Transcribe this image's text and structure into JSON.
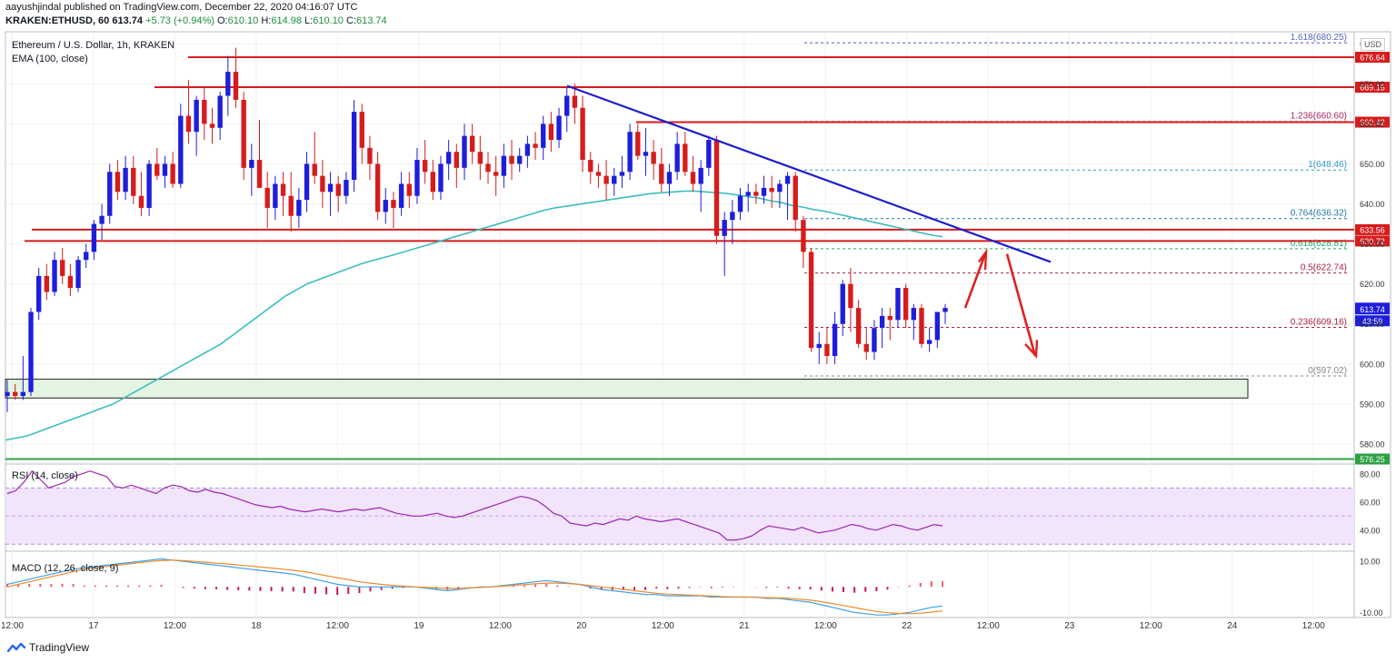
{
  "header": {
    "publisher": "aayushjindal",
    "published_text": " published on TradingView.com, December 22, 2020 04:16:07 UTC",
    "symbol": "KRAKEN:ETHUSD, 60",
    "last": "613.74",
    "change": "+5.73 (+0.94%)",
    "ohlc": [
      {
        "label": "O:",
        "value": "610.10"
      },
      {
        "label": "H:",
        "value": "614.98"
      },
      {
        "label": "L:",
        "value": "610.10"
      },
      {
        "label": "C:",
        "value": "613.74"
      }
    ]
  },
  "main_pane": {
    "title": "Ethereum / U.S. Dollar, 1h, KRAKEN",
    "indicator": "EMA (100, close)",
    "currency": "USD"
  },
  "rsi_pane": {
    "label": "RSI (14, close)"
  },
  "macd_pane": {
    "label": "MACD (12, 26, close, 9)"
  },
  "footer": {
    "brand": "TradingView"
  },
  "colors": {
    "up": "#1e1eda",
    "down": "#d61c1c",
    "ema": "#3dbdc0",
    "trendline": "#1e1ecc",
    "level": "#d61c1c",
    "support_zone": "#e3f4e3",
    "rsi": "#9c27b0",
    "macd": "#3fa0e6",
    "signal": "#ef8a2e"
  },
  "chart_data": [
    {
      "type": "candlestick",
      "pane": "price",
      "title": "Ethereum / U.S. Dollar, 1h, KRAKEN",
      "ylim": [
        575,
        683
      ],
      "y_ticks": [
        580,
        590,
        600,
        610,
        620,
        630,
        640,
        650,
        660,
        670,
        680
      ],
      "y_tick_labels": [
        "580.00",
        "590.00",
        "600.00",
        "610.00",
        "620.00",
        "630.00",
        "640.00",
        "650.00",
        "660.00",
        "670.00",
        "680.00"
      ],
      "x_ticks": [
        "12:00",
        "17",
        "12:00",
        "18",
        "12:00",
        "19",
        "12:00",
        "20",
        "12:00",
        "21",
        "12:00",
        "22",
        "12:00",
        "23",
        "12:00",
        "24",
        "12:00"
      ],
      "x_tick_hours": [
        0,
        12,
        24,
        36,
        48,
        60,
        72,
        84,
        96,
        108,
        120,
        132,
        144,
        156,
        168,
        180,
        192
      ],
      "time_start_hour": -1,
      "time_end_hour": 198,
      "ohlc": [
        [
          592,
          596,
          588,
          593
        ],
        [
          593,
          595,
          591,
          592
        ],
        [
          592,
          602,
          591,
          593
        ],
        [
          593,
          614,
          592,
          613
        ],
        [
          613,
          624,
          611,
          622
        ],
        [
          622,
          625,
          616,
          618
        ],
        [
          618,
          628,
          617,
          626
        ],
        [
          626,
          629,
          620,
          622
        ],
        [
          622,
          625,
          617,
          619
        ],
        [
          619,
          627,
          618,
          626
        ],
        [
          626,
          630,
          624,
          628
        ],
        [
          628,
          636,
          626,
          635
        ],
        [
          635,
          640,
          631,
          637
        ],
        [
          637,
          650,
          635,
          648
        ],
        [
          648,
          651,
          641,
          643
        ],
        [
          643,
          652,
          641,
          649
        ],
        [
          649,
          652,
          640,
          642
        ],
        [
          642,
          648,
          637,
          639
        ],
        [
          639,
          651,
          637,
          650
        ],
        [
          650,
          654,
          646,
          647
        ],
        [
          647,
          652,
          644,
          650
        ],
        [
          650,
          653,
          644,
          645
        ],
        [
          645,
          665,
          644,
          662
        ],
        [
          662,
          671,
          655,
          658
        ],
        [
          658,
          667,
          652,
          666
        ],
        [
          666,
          669,
          656,
          660
        ],
        [
          660,
          664,
          655,
          659
        ],
        [
          659,
          668,
          656,
          667
        ],
        [
          667,
          677,
          662,
          673
        ],
        [
          673,
          679,
          664,
          666
        ],
        [
          666,
          668,
          646,
          649
        ],
        [
          649,
          655,
          642,
          651
        ],
        [
          651,
          661,
          645,
          644
        ],
        [
          644,
          648,
          634,
          639
        ],
        [
          639,
          647,
          636,
          645
        ],
        [
          645,
          648,
          637,
          642
        ],
        [
          642,
          648,
          633,
          637
        ],
        [
          637,
          644,
          634,
          641
        ],
        [
          641,
          653,
          638,
          650
        ],
        [
          650,
          658,
          645,
          647
        ],
        [
          647,
          651,
          639,
          643
        ],
        [
          643,
          648,
          637,
          645
        ],
        [
          645,
          647,
          638,
          642
        ],
        [
          642,
          648,
          640,
          646
        ],
        [
          646,
          666,
          643,
          663
        ],
        [
          663,
          665,
          650,
          654
        ],
        [
          654,
          657,
          646,
          650
        ],
        [
          650,
          653,
          636,
          638
        ],
        [
          638,
          644,
          635,
          641
        ],
        [
          641,
          643,
          634,
          639
        ],
        [
          639,
          648,
          637,
          645
        ],
        [
          645,
          648,
          639,
          642
        ],
        [
          642,
          654,
          640,
          651
        ],
        [
          651,
          656,
          645,
          648
        ],
        [
          648,
          651,
          641,
          643
        ],
        [
          643,
          652,
          641,
          650
        ],
        [
          650,
          656,
          646,
          653
        ],
        [
          653,
          655,
          644,
          649
        ],
        [
          649,
          660,
          646,
          657
        ],
        [
          657,
          660,
          650,
          653
        ],
        [
          653,
          657,
          646,
          650
        ],
        [
          650,
          653,
          645,
          648
        ],
        [
          648,
          652,
          642,
          647
        ],
        [
          647,
          655,
          644,
          652
        ],
        [
          652,
          656,
          646,
          650
        ],
        [
          650,
          654,
          648,
          652
        ],
        [
          652,
          657,
          649,
          655
        ],
        [
          655,
          658,
          651,
          654
        ],
        [
          654,
          662,
          651,
          660
        ],
        [
          660,
          663,
          653,
          656
        ],
        [
          656,
          664,
          654,
          662
        ],
        [
          662,
          669,
          658,
          667
        ],
        [
          667,
          670,
          660,
          664
        ],
        [
          664,
          667,
          648,
          651
        ],
        [
          651,
          653,
          645,
          648
        ],
        [
          648,
          650,
          644,
          647
        ],
        [
          647,
          651,
          641,
          645
        ],
        [
          645,
          649,
          642,
          647
        ],
        [
          647,
          652,
          644,
          648
        ],
        [
          648,
          660,
          646,
          658
        ],
        [
          658,
          660,
          651,
          652
        ],
        [
          652,
          659,
          647,
          653
        ],
        [
          653,
          656,
          646,
          650
        ],
        [
          650,
          654,
          643,
          645
        ],
        [
          645,
          650,
          642,
          648
        ],
        [
          648,
          658,
          646,
          655
        ],
        [
          655,
          658,
          647,
          648
        ],
        [
          648,
          652,
          643,
          645
        ],
        [
          645,
          651,
          638,
          649
        ],
        [
          649,
          657,
          647,
          656
        ],
        [
          656,
          657,
          630,
          632
        ],
        [
          632,
          638,
          622,
          636
        ],
        [
          636,
          641,
          630,
          638
        ],
        [
          638,
          644,
          636,
          642
        ],
        [
          642,
          645,
          638,
          643
        ],
        [
          643,
          645,
          640,
          642
        ],
        [
          642,
          647,
          640,
          644
        ],
        [
          644,
          647,
          639,
          643
        ],
        [
          643,
          646,
          639,
          645
        ],
        [
          645,
          648,
          636,
          647
        ],
        [
          647,
          648,
          633,
          636
        ],
        [
          636,
          637,
          624,
          628
        ],
        [
          628,
          629,
          603,
          604
        ],
        [
          604,
          608,
          600,
          605
        ],
        [
          605,
          609,
          600,
          602
        ],
        [
          602,
          613,
          600,
          610
        ],
        [
          610,
          621,
          607,
          620
        ],
        [
          620,
          624,
          608,
          614
        ],
        [
          614,
          616,
          604,
          605
        ],
        [
          605,
          609,
          601,
          603
        ],
        [
          603,
          611,
          601,
          609
        ],
        [
          609,
          614,
          604,
          612
        ],
        [
          612,
          614,
          606,
          611
        ],
        [
          611,
          619,
          609,
          619
        ],
        [
          619,
          620,
          609,
          611
        ],
        [
          611,
          615,
          606,
          614
        ],
        [
          614,
          615,
          604,
          605
        ],
        [
          605,
          609,
          603,
          606
        ],
        [
          606,
          613,
          604,
          613
        ],
        [
          613,
          615,
          610,
          614
        ]
      ],
      "ema100": [
        581,
        581.5,
        582,
        583,
        584,
        585,
        586,
        587,
        588,
        589,
        590,
        591.5,
        593,
        594.5,
        596,
        597.5,
        599,
        600.5,
        602,
        603.5,
        605,
        607,
        609,
        611,
        613,
        615,
        617,
        618.5,
        620,
        621,
        622,
        623,
        624,
        625,
        625.8,
        626.5,
        627.2,
        628,
        628.8,
        629.6,
        630.4,
        631.2,
        632,
        632.8,
        633.6,
        634.4,
        635.2,
        636,
        636.8,
        637.6,
        638.4,
        639,
        639.4,
        639.8,
        640.2,
        640.6,
        641,
        641.4,
        641.8,
        642.2,
        642.6,
        642.8,
        643,
        643.2,
        643.2,
        643,
        642.8,
        642.6,
        642.2,
        641.8,
        641.4,
        640.8,
        640.4,
        639.6,
        639.2,
        638.6,
        638.2,
        637.6,
        637,
        636.4,
        635.8,
        635.2,
        634.6,
        634,
        633.4,
        632.8,
        632.2,
        631.8
      ],
      "levels": [
        676.64,
        669.15,
        660.42,
        633.56,
        630.72,
        576.25
      ],
      "level_labels": [
        "676.64",
        "669.15",
        "660.42",
        "633.56",
        "630.72",
        "576.25"
      ],
      "fib": [
        {
          "label": "1.618(680.25)",
          "value": 680.25
        },
        {
          "label": "1.236(660.60)",
          "value": 660.6
        },
        {
          "label": "1(648.46)",
          "value": 648.46
        },
        {
          "label": "0.764(636.32)",
          "value": 636.32
        },
        {
          "label": "0.618(628.81)",
          "value": 628.81
        },
        {
          "label": "0.5(622.74)",
          "value": 622.74
        },
        {
          "label": "0.236(609.16)",
          "value": 609.16
        },
        {
          "label": "0(597.02)",
          "value": 597.02
        }
      ],
      "current_price": "613.74",
      "countdown": "43:59",
      "support_zone": [
        591.5,
        596.2
      ]
    },
    {
      "type": "line",
      "pane": "rsi",
      "title": "RSI (14, close)",
      "ylim": [
        25,
        87
      ],
      "y_ticks": [
        40,
        60,
        80
      ],
      "y_tick_labels": [
        "40.00",
        "60.00",
        "80.00"
      ],
      "band": [
        30,
        70
      ],
      "values": [
        66,
        68,
        74,
        82,
        76,
        70,
        72,
        74,
        78,
        80,
        82,
        80,
        78,
        71,
        70,
        72,
        70,
        68,
        66,
        70,
        72,
        71,
        68,
        67,
        69,
        67,
        66,
        64,
        62,
        60,
        58,
        57,
        56,
        57,
        55,
        54,
        53,
        54,
        55,
        54,
        53,
        54,
        55,
        54,
        55,
        56,
        54,
        52,
        51,
        50,
        50,
        51,
        52,
        50,
        49,
        50,
        52,
        54,
        56,
        58,
        60,
        62,
        64,
        63,
        61,
        57,
        52,
        50,
        45,
        44,
        43,
        45,
        44,
        46,
        48,
        47,
        50,
        48,
        47,
        46,
        47,
        48,
        46,
        44,
        42,
        40,
        38,
        33,
        33,
        34,
        36,
        40,
        43,
        42,
        41,
        40,
        42,
        40,
        38,
        39,
        40,
        42,
        44,
        43,
        41,
        40,
        42,
        44,
        43,
        41,
        40,
        42,
        44,
        43
      ],
      "values_note": ""
    },
    {
      "type": "line",
      "pane": "macd",
      "title": "MACD (12, 26, close, 9)",
      "ylim": [
        -12,
        14
      ],
      "y_ticks": [
        -10,
        10
      ],
      "y_tick_labels": [
        "-10.00",
        "10.00"
      ],
      "macd": [
        1,
        2,
        3,
        4,
        5,
        6,
        7,
        7.5,
        8,
        8.5,
        9,
        9.5,
        10,
        10.5,
        11,
        10.5,
        10,
        9.5,
        9,
        8.5,
        8,
        7.5,
        7,
        6.5,
        6,
        5.5,
        5,
        4,
        3,
        2,
        1,
        0.5,
        0,
        0,
        0,
        0,
        0,
        0,
        -0.5,
        -1,
        -1.5,
        -1,
        -0.5,
        0,
        0,
        0.5,
        1,
        1.5,
        2,
        2.5,
        2,
        1.5,
        1,
        0,
        -1,
        -1.5,
        -2,
        -2.5,
        -3,
        -3,
        -3.5,
        -3.5,
        -3.5,
        -3.5,
        -4,
        -4,
        -4,
        -4,
        -4,
        -4.5,
        -4.5,
        -5,
        -5.5,
        -6,
        -7,
        -8,
        -9,
        -10,
        -10.5,
        -11,
        -11,
        -10.5,
        -10,
        -9,
        -8,
        -7.5
      ],
      "signal": [
        0,
        1,
        2,
        3,
        4,
        5,
        6,
        7,
        7.5,
        8,
        8.5,
        9,
        9.5,
        10,
        10.3,
        10.5,
        10.3,
        10,
        9.7,
        9.3,
        9,
        8.6,
        8.2,
        7.8,
        7.4,
        7,
        6.5,
        6,
        5.2,
        4.4,
        3.6,
        2.8,
        2,
        1.5,
        1,
        0.6,
        0.3,
        0,
        -0.2,
        -0.4,
        -0.6,
        -0.6,
        -0.4,
        -0.2,
        0,
        0.3,
        0.6,
        0.9,
        1.2,
        1.5,
        1.5,
        1.3,
        1,
        0.5,
        0,
        -0.5,
        -1,
        -1.5,
        -2,
        -2.5,
        -2.8,
        -3,
        -3.2,
        -3.4,
        -3.6,
        -3.8,
        -3.9,
        -4,
        -4.1,
        -4.2,
        -4.3,
        -4.5,
        -4.8,
        -5.2,
        -5.8,
        -6.5,
        -7.3,
        -8.1,
        -8.9,
        -9.6,
        -10.1,
        -10.4,
        -10.5,
        -10.3,
        -9.9,
        -9.4
      ]
    }
  ]
}
